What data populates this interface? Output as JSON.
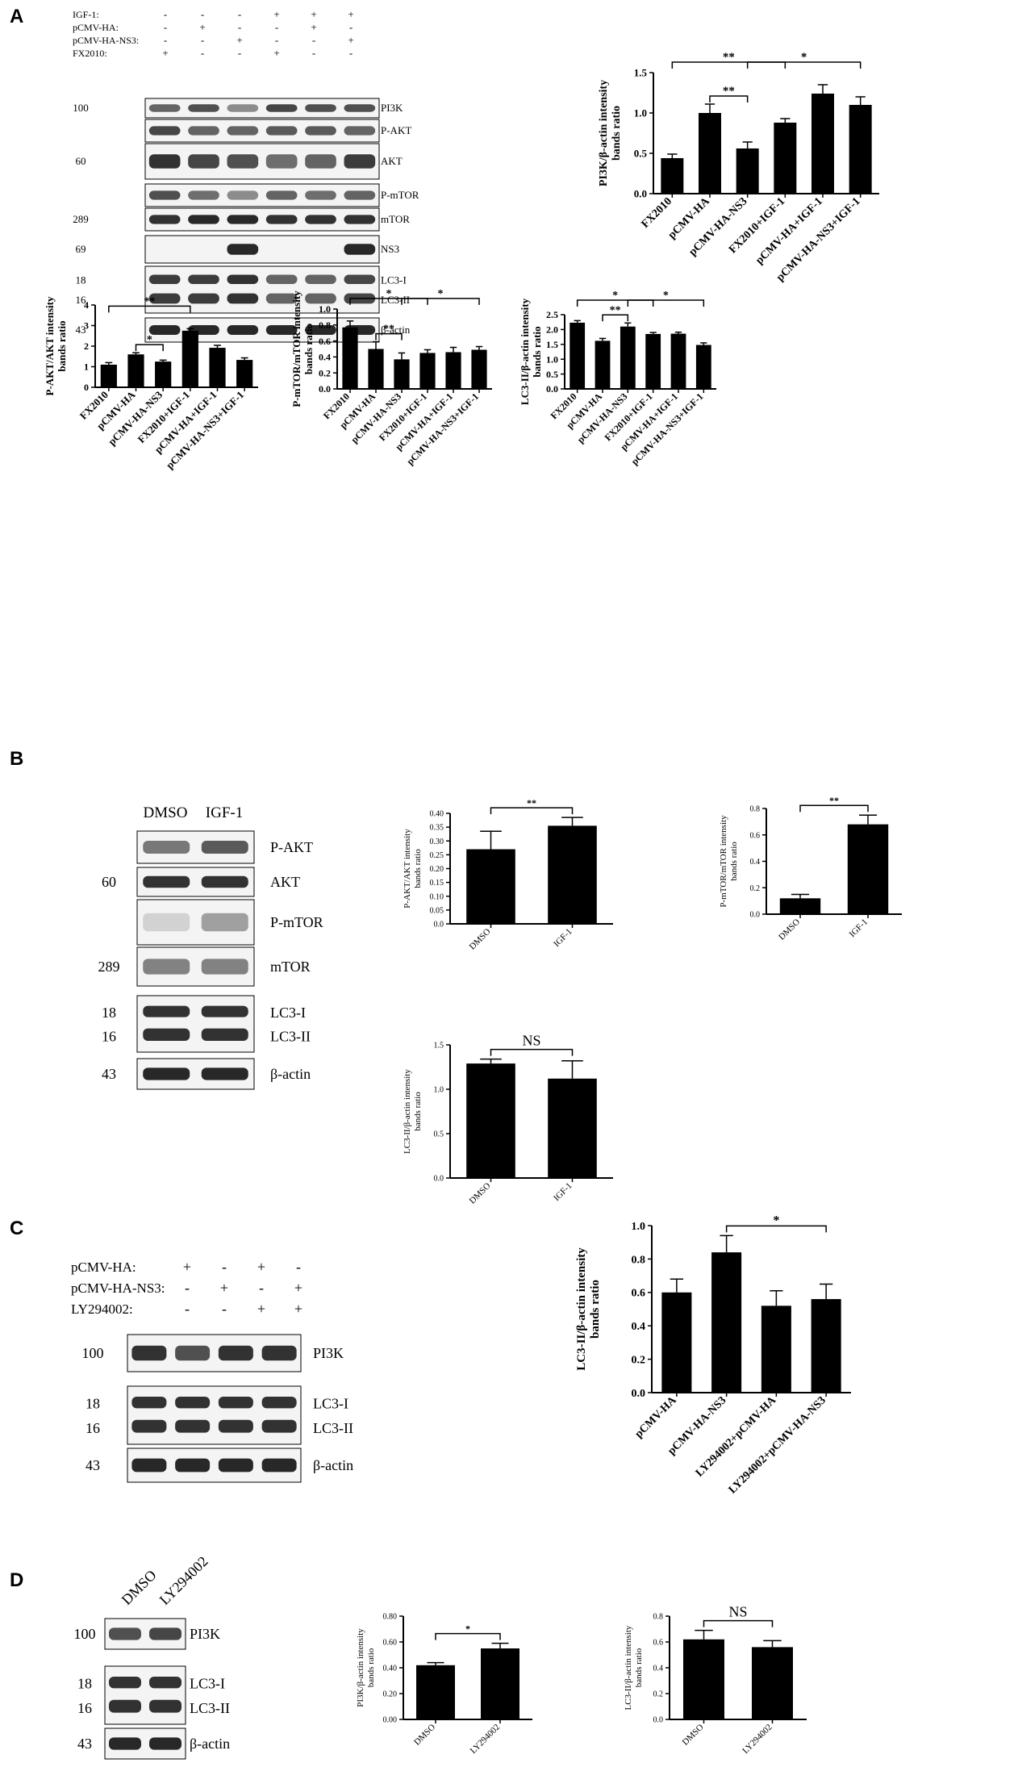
{
  "panels": {
    "A": {
      "letter": "A",
      "treatments": [
        {
          "label": "IGF-1:",
          "signs": [
            "-",
            "-",
            "-",
            "+",
            "+",
            "+"
          ]
        },
        {
          "label": "pCMV-HA:",
          "signs": [
            "-",
            "+",
            "-",
            "-",
            "+",
            "-"
          ]
        },
        {
          "label": "pCMV-HA-NS3:",
          "signs": [
            "-",
            "-",
            "+",
            "-",
            "-",
            "+"
          ]
        },
        {
          "label": "FX2010:",
          "signs": [
            "+",
            "-",
            "-",
            "+",
            "-",
            "-"
          ]
        }
      ],
      "blot_rows": [
        {
          "label": "PI3K",
          "mw": "100",
          "intensities": [
            0.6,
            0.7,
            0.4,
            0.75,
            0.7,
            0.7
          ]
        },
        {
          "label": "P-AKT",
          "mw": "",
          "intensities": [
            0.75,
            0.6,
            0.6,
            0.65,
            0.65,
            0.6
          ]
        },
        {
          "label": "AKT",
          "mw": "60",
          "intensities": [
            0.85,
            0.75,
            0.7,
            0.55,
            0.6,
            0.8
          ]
        },
        {
          "label": "P-mTOR",
          "mw": "",
          "intensities": [
            0.7,
            0.55,
            0.4,
            0.6,
            0.55,
            0.6
          ]
        },
        {
          "label": "mTOR",
          "mw": "289",
          "intensities": [
            0.85,
            0.9,
            0.9,
            0.85,
            0.85,
            0.85
          ]
        },
        {
          "label": "NS3",
          "mw": "69",
          "intensities": [
            0,
            0,
            0.9,
            0,
            0,
            0.9
          ]
        },
        {
          "label": "LC3-I",
          "label2": "LC3-II",
          "mw": "18",
          "mw2": "16",
          "intensities": [
            0.8,
            0.8,
            0.85,
            0.6,
            0.6,
            0.75
          ]
        },
        {
          "label": "β-actin",
          "mw": "43",
          "intensities": [
            0.9,
            0.9,
            0.9,
            0.9,
            0.9,
            0.9
          ]
        }
      ]
    },
    "B": {
      "letter": "B",
      "lanes": [
        "DMSO",
        "IGF-1"
      ],
      "blot_rows": [
        {
          "label": "P-AKT",
          "mw": "",
          "intensities": [
            0.5,
            0.65
          ]
        },
        {
          "label": "AKT",
          "mw": "60",
          "intensities": [
            0.85,
            0.85
          ]
        },
        {
          "label": "P-mTOR",
          "mw": "",
          "intensities": [
            0.05,
            0.3
          ]
        },
        {
          "label": "mTOR",
          "mw": "289",
          "intensities": [
            0.45,
            0.45
          ]
        },
        {
          "label": "LC3-I",
          "label2": "LC3-II",
          "mw": "18",
          "mw2": "16",
          "intensities": [
            0.85,
            0.85
          ]
        },
        {
          "label": "β-actin",
          "mw": "43",
          "intensities": [
            0.9,
            0.9
          ]
        }
      ]
    },
    "C": {
      "letter": "C",
      "treatments": [
        {
          "label": "pCMV-HA:",
          "signs": [
            "+",
            "-",
            "+",
            "-"
          ]
        },
        {
          "label": "pCMV-HA-NS3:",
          "signs": [
            "-",
            "+",
            "-",
            "+"
          ]
        },
        {
          "label": "LY294002:",
          "signs": [
            "-",
            "-",
            "+",
            "+"
          ]
        }
      ],
      "blot_rows": [
        {
          "label": "PI3K",
          "mw": "100",
          "intensities": [
            0.85,
            0.7,
            0.85,
            0.85
          ]
        },
        {
          "label": "LC3-I",
          "label2": "LC3-II",
          "mw": "18",
          "mw2": "16",
          "intensities": [
            0.85,
            0.85,
            0.85,
            0.85
          ]
        },
        {
          "label": "β-actin",
          "mw": "43",
          "intensities": [
            0.9,
            0.9,
            0.9,
            0.9
          ]
        }
      ]
    },
    "D": {
      "letter": "D",
      "lanes": [
        "DMSO",
        "LY294002"
      ],
      "blot_rows": [
        {
          "label": "PI3K",
          "mw": "100",
          "intensities": [
            0.7,
            0.75
          ]
        },
        {
          "label": "LC3-I",
          "label2": "LC3-II",
          "mw": "18",
          "mw2": "16",
          "intensities": [
            0.85,
            0.85
          ]
        },
        {
          "label": "β-actin",
          "mw": "43",
          "intensities": [
            0.9,
            0.9
          ]
        }
      ]
    }
  },
  "chart_data": [
    {
      "id": "A1",
      "type": "bar",
      "ylabel": "PI3K/β-actin intensity bands ratio",
      "categories": [
        "FX2010",
        "pCMV-HA",
        "pCMV-HA-NS3",
        "FX2010+IGF-1",
        "pCMV-HA+IGF-1",
        "pCMV-HA-NS3+IGF-1"
      ],
      "values": [
        0.44,
        1.0,
        0.56,
        0.88,
        1.24,
        1.1
      ],
      "errors": [
        0.05,
        0.11,
        0.08,
        0.05,
        0.11,
        0.1
      ],
      "ylim": [
        0,
        1.5
      ],
      "ticks": [
        "0.0",
        "0.5",
        "1.0",
        "1.5"
      ],
      "significance": [
        {
          "from": 0,
          "to": 3,
          "label": "**"
        },
        {
          "from": 1,
          "to": 2,
          "label": "**"
        },
        {
          "from": 2,
          "to": 5,
          "label": "*"
        }
      ]
    },
    {
      "id": "A2",
      "type": "bar",
      "ylabel": "P-AKT/AKT intensity bands ratio",
      "categories": [
        "FX2010",
        "pCMV-HA",
        "pCMV-HA-NS3",
        "FX2010+IGF-1",
        "pCMV-HA+IGF-1",
        "pCMV-HA-NS3+IGF-1"
      ],
      "values": [
        1.1,
        1.6,
        1.25,
        2.75,
        1.92,
        1.33
      ],
      "errors": [
        0.1,
        0.08,
        0.07,
        0.1,
        0.12,
        0.1
      ],
      "ylim": [
        0,
        4
      ],
      "ticks": [
        "0",
        "1",
        "2",
        "3",
        "4"
      ],
      "significance": [
        {
          "from": 0,
          "to": 3,
          "label": "**"
        },
        {
          "from": 1,
          "to": 2,
          "label": "*"
        }
      ]
    },
    {
      "id": "A3",
      "type": "bar",
      "ylabel": "P-mTOR/mTOR intensity bands ratio",
      "categories": [
        "FX2010",
        "pCMV-HA",
        "pCMV-HA-NS3",
        "FX2010+IGF-1",
        "pCMV-HA+IGF-1",
        "pCMV-HA-NS3+IGF-1"
      ],
      "values": [
        0.77,
        0.5,
        0.37,
        0.45,
        0.46,
        0.49
      ],
      "errors": [
        0.08,
        0.09,
        0.08,
        0.04,
        0.06,
        0.04
      ],
      "ylim": [
        0,
        1.0
      ],
      "ticks": [
        "0.0",
        "0.2",
        "0.4",
        "0.6",
        "0.8",
        "1.0"
      ],
      "significance": [
        {
          "from": 0,
          "to": 3,
          "label": "*"
        },
        {
          "from": 1,
          "to": 2,
          "label": "**"
        },
        {
          "from": 2,
          "to": 5,
          "label": "*"
        }
      ]
    },
    {
      "id": "A4",
      "type": "bar",
      "ylabel": "LC3-II/β-actin intensity bands ratio",
      "categories": [
        "FX2010",
        "pCMV-HA",
        "pCMV-HA-NS3",
        "FX2010+IGF-1",
        "pCMV-HA+IGF-1",
        "pCMV-HA-NS3+IGF-1"
      ],
      "values": [
        2.23,
        1.62,
        2.1,
        1.85,
        1.86,
        1.48
      ],
      "errors": [
        0.07,
        0.08,
        0.12,
        0.05,
        0.05,
        0.07
      ],
      "ylim": [
        0,
        2.5
      ],
      "ticks": [
        "0.0",
        "0.5",
        "1.0",
        "1.5",
        "2.0",
        "2.5"
      ],
      "significance": [
        {
          "from": 0,
          "to": 3,
          "label": "*"
        },
        {
          "from": 1,
          "to": 2,
          "label": "**"
        },
        {
          "from": 2,
          "to": 5,
          "label": "*"
        }
      ]
    },
    {
      "id": "B1",
      "type": "bar",
      "ylabel": "P-AKT/AKT intensity bands ratio",
      "categories": [
        "DMSO",
        "IGF-1"
      ],
      "values": [
        0.27,
        0.355
      ],
      "errors": [
        0.065,
        0.03
      ],
      "ylim": [
        0,
        0.4
      ],
      "ticks": [
        "0.0",
        "0.05",
        "0.10",
        "0.15",
        "0.20",
        "0.25",
        "0.30",
        "0.35",
        "0.40"
      ],
      "significance": [
        {
          "from": 0,
          "to": 1,
          "label": "**"
        }
      ]
    },
    {
      "id": "B2",
      "type": "bar",
      "ylabel": "P-mTOR/mTOR intensity bands ratio",
      "categories": [
        "DMSO",
        "IGF-1"
      ],
      "values": [
        0.12,
        0.68
      ],
      "errors": [
        0.03,
        0.07
      ],
      "ylim": [
        0,
        0.8
      ],
      "ticks": [
        "0.0",
        "0.2",
        "0.4",
        "0.6",
        "0.8"
      ],
      "significance": [
        {
          "from": 0,
          "to": 1,
          "label": "**"
        }
      ]
    },
    {
      "id": "B3",
      "type": "bar",
      "ylabel": "LC3-II/β-actin intensity bands ratio",
      "categories": [
        "DMSO",
        "IGF-1"
      ],
      "values": [
        1.29,
        1.12
      ],
      "errors": [
        0.05,
        0.2
      ],
      "ylim": [
        0,
        1.5
      ],
      "ticks": [
        "0.0",
        "0.5",
        "1.0",
        "1.5"
      ],
      "significance": [
        {
          "from": 0,
          "to": 1,
          "label": "NS"
        }
      ]
    },
    {
      "id": "C1",
      "type": "bar",
      "ylabel": "LC3-II/β-actin intensity bands ratio",
      "categories": [
        "pCMV-HA",
        "pCMV-HA-NS3",
        "LY294002+pCMV-HA",
        "LY294002+pCMV-HA-NS3"
      ],
      "values": [
        0.6,
        0.84,
        0.52,
        0.56
      ],
      "errors": [
        0.08,
        0.1,
        0.09,
        0.09
      ],
      "ylim": [
        0,
        1.0
      ],
      "ticks": [
        "0.0",
        "0.2",
        "0.4",
        "0.6",
        "0.8",
        "1.0"
      ],
      "significance": [
        {
          "from": 1,
          "to": 3,
          "label": "*"
        }
      ]
    },
    {
      "id": "D1",
      "type": "bar",
      "ylabel": "PI3K/β-actin intensity bands ratio",
      "categories": [
        "DMSO",
        "LY294002"
      ],
      "values": [
        0.42,
        0.55
      ],
      "errors": [
        0.02,
        0.04
      ],
      "ylim": [
        0,
        0.8
      ],
      "ticks": [
        "0.00",
        "0.20",
        "0.40",
        "0.60",
        "0.80"
      ],
      "significance": [
        {
          "from": 0,
          "to": 1,
          "label": "*"
        }
      ]
    },
    {
      "id": "D2",
      "type": "bar",
      "ylabel": "LC3-II/β-actin intensity bands ratio",
      "categories": [
        "DMSO",
        "LY294002"
      ],
      "values": [
        0.62,
        0.56
      ],
      "errors": [
        0.07,
        0.05
      ],
      "ylim": [
        0,
        0.8
      ],
      "ticks": [
        "0.0",
        "0.2",
        "0.4",
        "0.6",
        "0.8"
      ],
      "significance": [
        {
          "from": 0,
          "to": 1,
          "label": "NS"
        }
      ]
    }
  ]
}
